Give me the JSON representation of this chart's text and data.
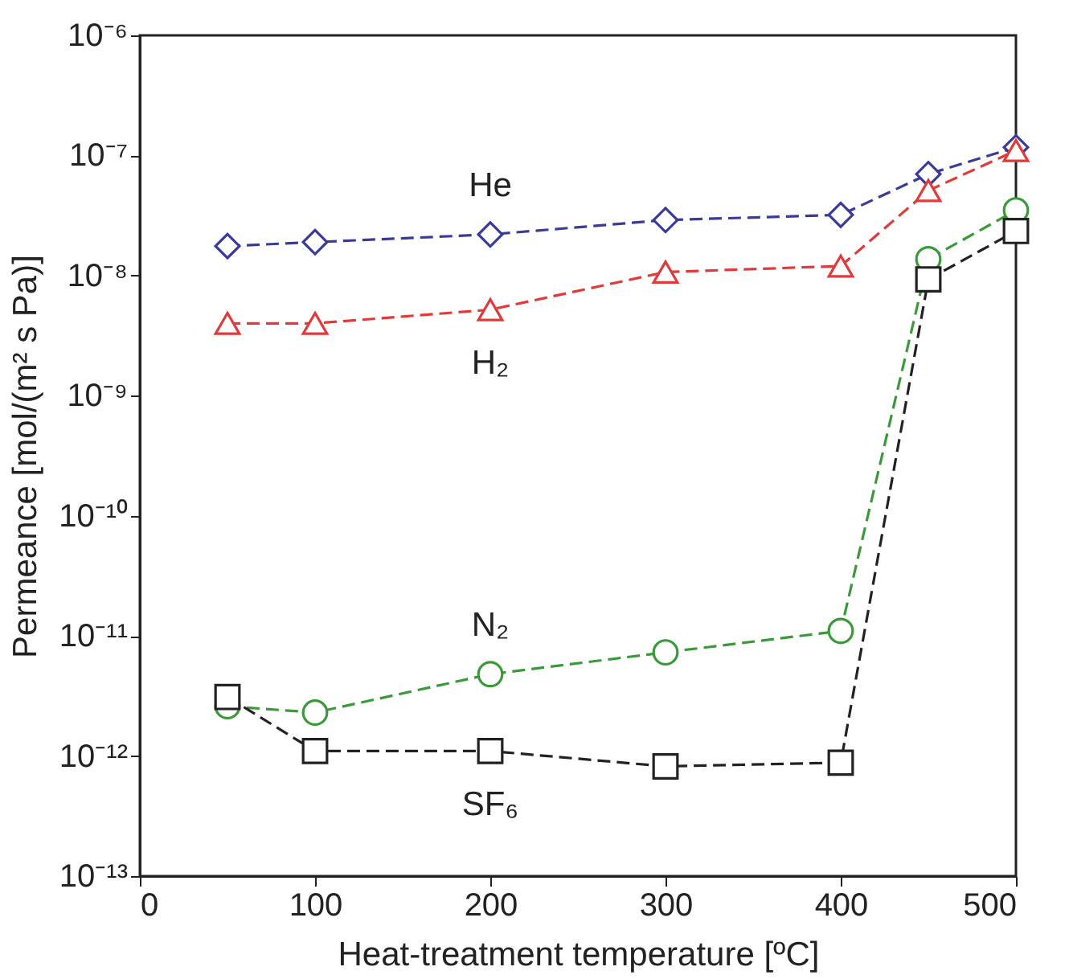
{
  "chart_data": {
    "type": "line",
    "xlabel": "Heat-treatment temperature [ºC]",
    "ylabel": "Permeance [mol/(m² s Pa)]",
    "x": [
      50,
      100,
      200,
      300,
      400,
      450,
      500
    ],
    "series": [
      {
        "name": "He",
        "color": "#3a3a9a",
        "marker": "diamond",
        "values": [
          1.76e-08,
          1.9e-08,
          2.2e-08,
          2.9e-08,
          3.2e-08,
          7e-08,
          1.17e-07
        ]
      },
      {
        "name": "H₂",
        "color": "#e03a3a",
        "marker": "triangle",
        "values": [
          4e-09,
          4e-09,
          5.2e-09,
          1.07e-08,
          1.2e-08,
          5.1e-08,
          1.1e-07
        ]
      },
      {
        "name": "N₂",
        "color": "#3a9a3a",
        "marker": "circle",
        "values": [
          2.6e-12,
          2.3e-12,
          4.8e-12,
          7.3e-12,
          1.1e-11,
          1.37e-08,
          3.5e-08
        ]
      },
      {
        "name": "SF₆",
        "color": "#222222",
        "marker": "square",
        "values": [
          3.1e-12,
          1.1e-12,
          1.1e-12,
          8.2e-13,
          8.8e-13,
          9.3e-09,
          2.35e-08
        ]
      }
    ],
    "log": "y",
    "xlim": [
      0,
      500
    ],
    "xticks": [
      0,
      100,
      200,
      300,
      400,
      500
    ],
    "ylim": [
      1e-13,
      1e-06
    ],
    "yticks": [
      {
        "value": 1e-13,
        "label": "10⁻¹³"
      },
      {
        "value": 1e-12,
        "label": "10⁻¹²"
      },
      {
        "value": 1e-11,
        "label": "10⁻¹¹"
      },
      {
        "value": 1e-10,
        "label": "10⁻¹⁰"
      },
      {
        "value": 1e-09,
        "label": "10⁻⁹"
      },
      {
        "value": 1e-08,
        "label": "10⁻⁸"
      },
      {
        "value": 1e-07,
        "label": "10⁻⁷"
      },
      {
        "value": 1e-06,
        "label": "10⁻⁶"
      }
    ],
    "grid": false,
    "line_style": "dashed"
  }
}
